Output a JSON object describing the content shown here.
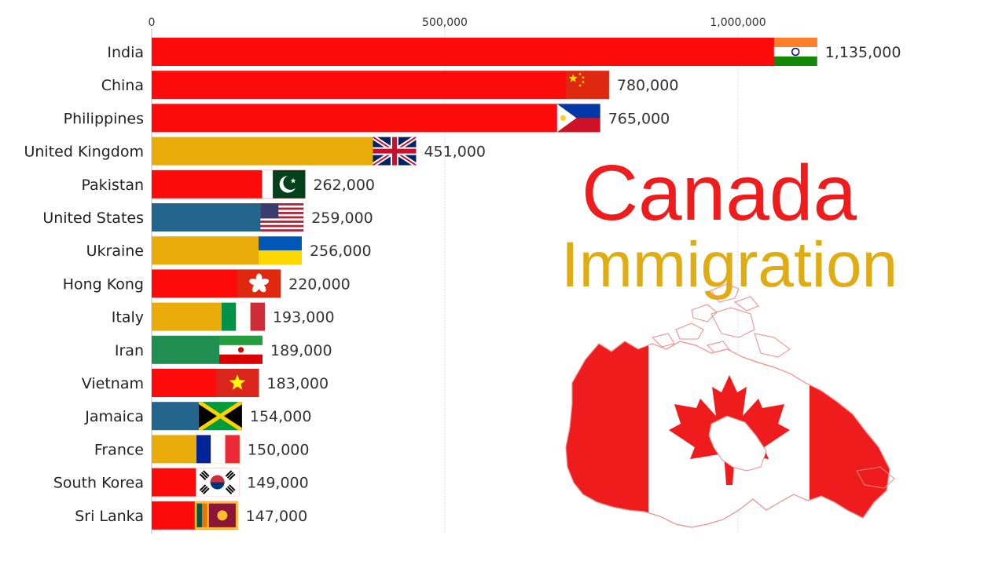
{
  "title": {
    "line1": "Canada",
    "line2": "Immigration",
    "line1_color": "#ee1c1c",
    "line2_color": "#e0ac14"
  },
  "chart_data": {
    "type": "bar",
    "orientation": "horizontal",
    "xlim": [
      0,
      1200000
    ],
    "x_ticks": [
      0,
      500000,
      1000000
    ],
    "x_tick_labels": [
      "0",
      "500,000",
      "1,000,000"
    ],
    "grid": true,
    "categories": [
      "India",
      "China",
      "Philippines",
      "United Kingdom",
      "Pakistan",
      "United States",
      "Ukraine",
      "Hong Kong",
      "Italy",
      "Iran",
      "Vietnam",
      "Jamaica",
      "France",
      "South Korea",
      "Sri Lanka"
    ],
    "values": [
      1135000,
      780000,
      765000,
      451000,
      262000,
      259000,
      256000,
      220000,
      193000,
      189000,
      183000,
      154000,
      150000,
      149000,
      147000
    ],
    "value_labels": [
      "1,135,000",
      "780,000",
      "765,000",
      "451,000",
      "262,000",
      "259,000",
      "256,000",
      "220,000",
      "193,000",
      "189,000",
      "183,000",
      "154,000",
      "150,000",
      "149,000",
      "147,000"
    ],
    "flags": [
      "india-flag",
      "china-flag",
      "philippines-flag",
      "uk-flag",
      "pakistan-flag",
      "usa-flag",
      "ukraine-flag",
      "hong-kong-flag",
      "italy-flag",
      "iran-flag",
      "vietnam-flag",
      "jamaica-flag",
      "france-flag",
      "south-korea-flag",
      "sri-lanka-flag"
    ],
    "region_colors": {
      "asia": "#fd0a0a",
      "europe": "#e9ac0b",
      "americas": "#24658e",
      "middle-east": "#1f8e4f"
    },
    "bar_regions": [
      "asia",
      "asia",
      "asia",
      "europe",
      "asia",
      "americas",
      "europe",
      "asia",
      "europe",
      "middle-east",
      "asia",
      "americas",
      "europe",
      "asia",
      "asia"
    ]
  },
  "map": {
    "icon": "canada-flag-map-icon",
    "red": "#ee1c1c",
    "outline": "#f08a8a"
  }
}
